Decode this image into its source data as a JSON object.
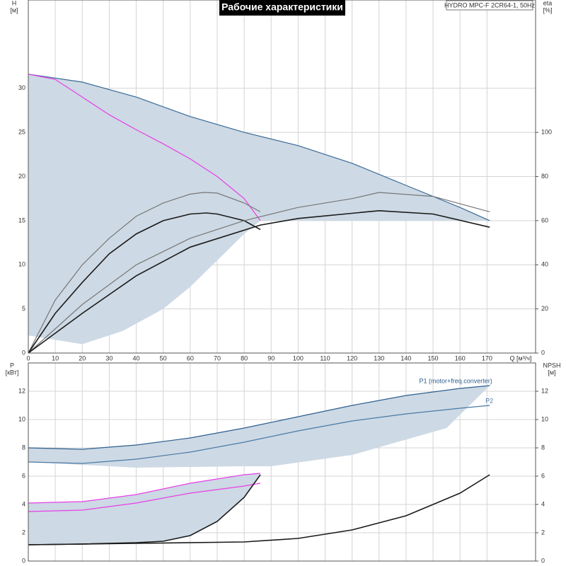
{
  "chart_data": [
    {
      "type": "line",
      "title": "Рабочие характеристики",
      "model": "HYDRO MPC-F 2CR64-1, 50Hz",
      "ylabel": "H",
      "yunit": "[м]",
      "y2label": "eta",
      "y2unit": "[%]",
      "xlabel": "Q [м³/ч]",
      "xlim": [
        0,
        188
      ],
      "xticks": [
        0,
        10,
        20,
        30,
        40,
        50,
        60,
        70,
        80,
        90,
        100,
        110,
        120,
        130,
        140,
        150,
        160,
        170
      ],
      "ylim": [
        0,
        40
      ],
      "yticks": [
        0,
        5,
        10,
        15,
        20,
        25,
        30
      ],
      "y2lim": [
        0,
        160
      ],
      "y2ticks": [
        0,
        20,
        40,
        60,
        80,
        100
      ],
      "grid": true,
      "series": [
        {
          "kind": "area",
          "color": "#cdd9e4",
          "x": [
            0,
            20,
            40,
            60,
            80,
            100,
            120,
            140,
            160,
            171,
            86,
            80,
            70,
            60,
            50,
            35,
            20,
            0
          ],
          "values": [
            31.6,
            30.7,
            29,
            26.8,
            25,
            23.5,
            21.5,
            19,
            16.5,
            15,
            15,
            13.5,
            10.5,
            7.5,
            5,
            2.5,
            1,
            2
          ]
        },
        {
          "kind": "line",
          "color": "#3a6a96",
          "x": [
            0,
            20,
            40,
            60,
            80,
            100,
            120,
            140,
            160,
            171
          ],
          "values": [
            31.6,
            30.7,
            29,
            26.8,
            25,
            23.5,
            21.5,
            19,
            16.5,
            15
          ]
        },
        {
          "kind": "line",
          "color": "#e83ee8",
          "x": [
            0,
            10,
            20,
            30,
            40,
            50,
            60,
            70,
            80,
            86
          ],
          "values": [
            31.6,
            31,
            29,
            27,
            25.3,
            23.7,
            22,
            20,
            17.5,
            15
          ]
        },
        {
          "kind": "line",
          "color": "#777777",
          "axis": "y2",
          "x": [
            0,
            10,
            20,
            30,
            40,
            50,
            60,
            65,
            70,
            80,
            86
          ],
          "values": [
            0,
            24,
            40,
            52,
            62,
            68,
            72,
            72.8,
            72.5,
            68,
            64
          ]
        },
        {
          "kind": "line",
          "color": "#1a1a1a",
          "axis": "y2",
          "x": [
            0,
            10,
            20,
            30,
            40,
            50,
            60,
            66,
            70,
            80,
            86
          ],
          "values": [
            0,
            18,
            32,
            45,
            54,
            60,
            63,
            63.5,
            63,
            60,
            56
          ]
        },
        {
          "kind": "line",
          "color": "#777777",
          "axis": "y2",
          "x": [
            0,
            20,
            40,
            60,
            80,
            100,
            120,
            130,
            150,
            171
          ],
          "values": [
            0,
            22,
            40,
            52,
            60,
            66,
            70,
            72.8,
            71,
            64
          ]
        },
        {
          "kind": "line",
          "color": "#1a1a1a",
          "axis": "y2",
          "x": [
            0,
            20,
            40,
            60,
            86,
            100,
            130,
            150,
            171
          ],
          "values": [
            0,
            18,
            35,
            48,
            58,
            61,
            64.5,
            63,
            57
          ]
        }
      ]
    },
    {
      "type": "line",
      "ylabel": "P",
      "yunit": "[кВт]",
      "y2label": "NPSH",
      "y2unit": "[м]",
      "xlim": [
        0,
        188
      ],
      "ylim": [
        0,
        14
      ],
      "yticks": [
        0,
        2,
        4,
        6,
        8,
        10,
        12
      ],
      "y2lim": [
        0,
        14
      ],
      "y2ticks": [
        0,
        2,
        4,
        6,
        8,
        10,
        12
      ],
      "grid": true,
      "series": [
        {
          "kind": "area",
          "color": "#cdd9e4",
          "x": [
            0,
            20,
            40,
            60,
            80,
            100,
            120,
            140,
            160,
            171,
            155,
            120,
            90,
            80,
            40,
            0
          ],
          "values": [
            8,
            7.9,
            8.2,
            8.7,
            9.4,
            10.2,
            11,
            11.7,
            12.2,
            12.4,
            9.4,
            7.5,
            6.7,
            6.7,
            6.6,
            7
          ]
        },
        {
          "kind": "area",
          "color": "#cdd9e4",
          "x": [
            0,
            20,
            40,
            60,
            80,
            86,
            80,
            70,
            60,
            50,
            40,
            20,
            0
          ],
          "values": [
            4.1,
            4.2,
            4.7,
            5.5,
            6.1,
            6.2,
            4.5,
            2.8,
            1.8,
            1.4,
            1.3,
            1.2,
            1.15
          ]
        },
        {
          "kind": "line",
          "name": "P1 (motor+freq.converter)",
          "color": "#2d5f8f",
          "x": [
            0,
            20,
            40,
            60,
            80,
            100,
            120,
            140,
            160,
            171
          ],
          "values": [
            8,
            7.9,
            8.2,
            8.7,
            9.4,
            10.2,
            11,
            11.7,
            12.2,
            12.4
          ]
        },
        {
          "kind": "line",
          "name": "P2",
          "color": "#4a7aa6",
          "x": [
            0,
            20,
            40,
            60,
            80,
            100,
            120,
            140,
            160,
            171
          ],
          "values": [
            7,
            6.9,
            7.2,
            7.7,
            8.4,
            9.2,
            9.9,
            10.4,
            10.8,
            11
          ]
        },
        {
          "kind": "line",
          "color": "#e83ee8",
          "x": [
            0,
            20,
            40,
            60,
            80,
            86
          ],
          "values": [
            4.1,
            4.2,
            4.7,
            5.5,
            6.1,
            6.2
          ]
        },
        {
          "kind": "line",
          "color": "#e83ee8",
          "x": [
            0,
            20,
            40,
            60,
            80,
            86
          ],
          "values": [
            3.5,
            3.6,
            4.1,
            4.8,
            5.3,
            5.5
          ]
        },
        {
          "kind": "line",
          "color": "#1a1a1a",
          "axis": "y2",
          "x": [
            0,
            20,
            40,
            50,
            60,
            70,
            80,
            86
          ],
          "values": [
            1.15,
            1.2,
            1.3,
            1.4,
            1.8,
            2.8,
            4.5,
            6.1
          ]
        },
        {
          "kind": "line",
          "color": "#1a1a1a",
          "axis": "y2",
          "x": [
            0,
            40,
            80,
            100,
            120,
            140,
            160,
            171
          ],
          "values": [
            1.15,
            1.25,
            1.35,
            1.6,
            2.2,
            3.2,
            4.8,
            6.1
          ]
        }
      ]
    }
  ]
}
